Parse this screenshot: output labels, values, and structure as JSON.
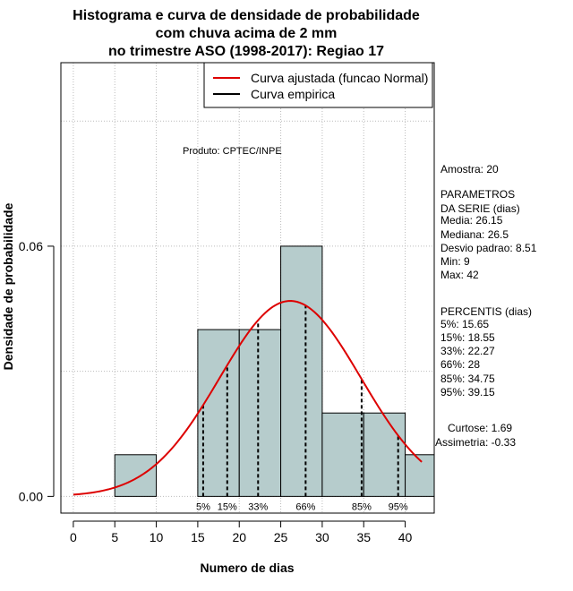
{
  "chart_data": {
    "type": "bar",
    "title_lines": [
      "Histograma e curva de densidade de probabilidade",
      "com chuva acima de 2 mm",
      "no trimestre ASO (1998-2017): Regiao 17"
    ],
    "xlabel": "Numero de dias",
    "ylabel": "Densidade de probabilidade",
    "xlim": [
      -1.5,
      43.5
    ],
    "ylim": [
      -0.004,
      0.104
    ],
    "x_ticks": [
      0,
      5,
      10,
      15,
      20,
      25,
      30,
      35,
      40
    ],
    "y_ticks": [
      0.0,
      0.06
    ],
    "y_tick_labels": [
      "0.00",
      "0.06"
    ],
    "bins": [
      {
        "x0": 5,
        "x1": 10,
        "density": 0.01
      },
      {
        "x0": 10,
        "x1": 15,
        "density": 0.0
      },
      {
        "x0": 15,
        "x1": 20,
        "density": 0.04
      },
      {
        "x0": 20,
        "x1": 25,
        "density": 0.04
      },
      {
        "x0": 25,
        "x1": 30,
        "density": 0.06
      },
      {
        "x0": 30,
        "x1": 35,
        "density": 0.02
      },
      {
        "x0": 35,
        "x1": 40,
        "density": 0.02
      },
      {
        "x0": 40,
        "x1": 43.5,
        "density": 0.01
      }
    ],
    "normal_fit": {
      "mean": 26.15,
      "sd": 8.51,
      "x_from": 0,
      "x_to": 42
    },
    "percentile_markers": [
      {
        "label": "5%",
        "x": 15.65
      },
      {
        "label": "15%",
        "x": 18.55
      },
      {
        "label": "33%",
        "x": 22.27
      },
      {
        "label": "66%",
        "x": 28
      },
      {
        "label": "85%",
        "x": 34.75
      },
      {
        "label": "95%",
        "x": 39.15
      }
    ],
    "legend": {
      "placement": "top-right",
      "items": [
        {
          "label": "Curva ajustada (funcao Normal)",
          "color": "#dd0000"
        },
        {
          "label": "Curva empirica",
          "color": "#000000"
        }
      ]
    },
    "grid": true,
    "bar_color": "#b6cccc",
    "curve_color": "#dd0000",
    "annotation": "Produto: CPTEC/INPE",
    "stats_text": [
      "Amostra: 20",
      " PARAMETROS",
      "DA SERIE (dias)",
      "  Media: 26.15",
      "  Mediana: 26.5",
      "  Desvio padrao: 8.51",
      "  Min: 9",
      "  Max: 42",
      "PERCENTIS (dias)",
      "  5%: 15.65",
      "  15%: 18.55",
      "  33%: 22.27",
      "  66%: 28",
      "  85%: 34.75",
      "  95%: 39.15",
      "Curtose: 1.69",
      "Assimetria: -0.33"
    ]
  }
}
